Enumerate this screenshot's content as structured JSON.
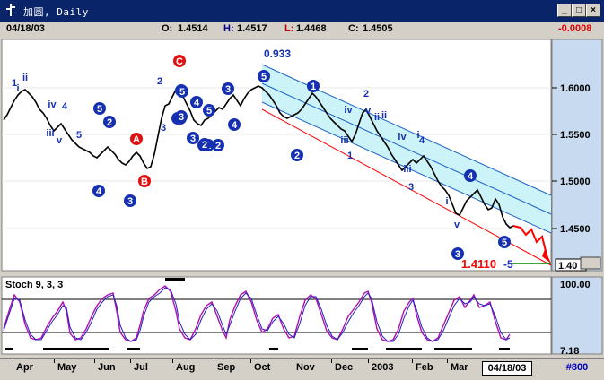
{
  "window": {
    "title": "加圆, Daily"
  },
  "quote": {
    "date": "04/18/03",
    "open_label": "O:",
    "open": "1.4514",
    "high_label": "H:",
    "high": "1.4517",
    "low_label": "L:",
    "low": "1.4468",
    "close_label": "C:",
    "close": "1.4505",
    "change": "-0.0008"
  },
  "colors": {
    "price_axis_bg": "#c8daf0",
    "channel_fill": "#ccf4f8",
    "channel_line": "#1e64c8",
    "wave_circle": "#1530b0",
    "corrective_circle": "#e01010",
    "target_red": "#ff0000",
    "stoch_line1": "#b010b0",
    "stoch_line2": "#2020c0"
  },
  "chart_data": [
    {
      "type": "line",
      "title": "",
      "y_ticks": [
        "1.6000",
        "1.5500",
        "1.5000",
        "1.4500"
      ],
      "last_price_box": "1.40",
      "annotations": {
        "channel_top_label": "0.933",
        "target_value": "1.4110",
        "target_suffix": "-5",
        "circled_labels": [
          "1",
          "2",
          "3",
          "4",
          "5",
          "1",
          "2",
          "3",
          "4",
          "5",
          "1",
          "2",
          "3",
          "4",
          "5",
          "3",
          "5",
          "4",
          "A",
          "B",
          "C",
          "5",
          "1",
          "2",
          "3",
          "2",
          "5"
        ],
        "wave_text_labels": [
          "i",
          "ii",
          "iii",
          "iv",
          "v",
          "1",
          "2",
          "3",
          "4",
          "5",
          "ii",
          "v",
          "iv",
          "i",
          "iii",
          "2",
          "4",
          "3",
          "1",
          "ii",
          "v",
          "iv",
          "iii",
          "i"
        ]
      }
    },
    {
      "type": "line",
      "title": "Stoch 9, 3, 3",
      "y_ticks": [
        "100.00",
        "7.18"
      ]
    }
  ],
  "months": [
    "Apr",
    "May",
    "Jun",
    "Jul",
    "Aug",
    "Sep",
    "Oct",
    "Nov",
    "Dec",
    "2003",
    "Feb",
    "Mar"
  ],
  "date_box": "04/18/03",
  "zoom": "#800"
}
